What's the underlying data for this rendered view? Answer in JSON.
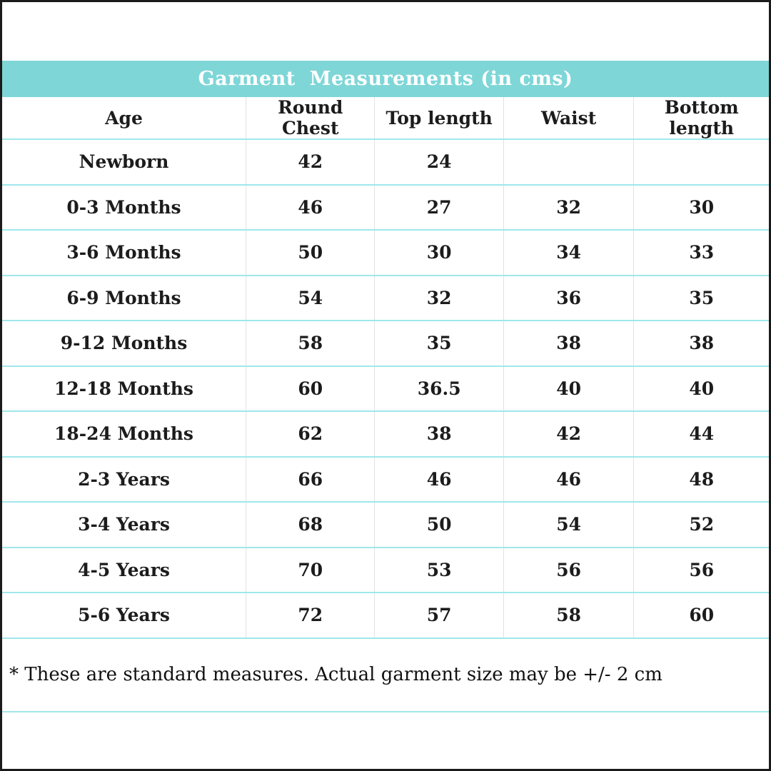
{
  "title": "Garment  Measurements (in cms)",
  "footnote": "* These are standard measures. Actual garment size may be +/- 2 cm",
  "colors": {
    "title_bar_bg": "#7ed6d7",
    "title_text": "#ffffff",
    "row_separator": "#9fe8ea",
    "column_separator": "#e2e2e2",
    "cell_text": "#1c1c1c",
    "outer_border": "#1b1b1b"
  },
  "chart_data": {
    "type": "table",
    "title": "Garment  Measurements (in cms)",
    "columns": [
      "Age",
      "Round Chest",
      "Top length",
      "Waist",
      "Bottom length"
    ],
    "rows": [
      [
        "Newborn",
        "42",
        "24",
        "",
        ""
      ],
      [
        "0-3 Months",
        "46",
        "27",
        "32",
        "30"
      ],
      [
        "3-6 Months",
        "50",
        "30",
        "34",
        "33"
      ],
      [
        "6-9 Months",
        "54",
        "32",
        "36",
        "35"
      ],
      [
        "9-12 Months",
        "58",
        "35",
        "38",
        "38"
      ],
      [
        "12-18 Months",
        "60",
        "36.5",
        "40",
        "40"
      ],
      [
        "18-24 Months",
        "62",
        "38",
        "42",
        "44"
      ],
      [
        "2-3 Years",
        "66",
        "46",
        "46",
        "48"
      ],
      [
        "3-4 Years",
        "68",
        "50",
        "54",
        "52"
      ],
      [
        "4-5 Years",
        "70",
        "53",
        "56",
        "56"
      ],
      [
        "5-6 Years",
        "72",
        "57",
        "58",
        "60"
      ]
    ],
    "layout": {
      "column_widths_pct": [
        31.8,
        16.8,
        16.8,
        17.0,
        17.6
      ],
      "grid": "horizontal-teal-lines, vertical-light-gray-lines",
      "note": "Newborn row has empty Waist and Bottom length cells"
    }
  }
}
